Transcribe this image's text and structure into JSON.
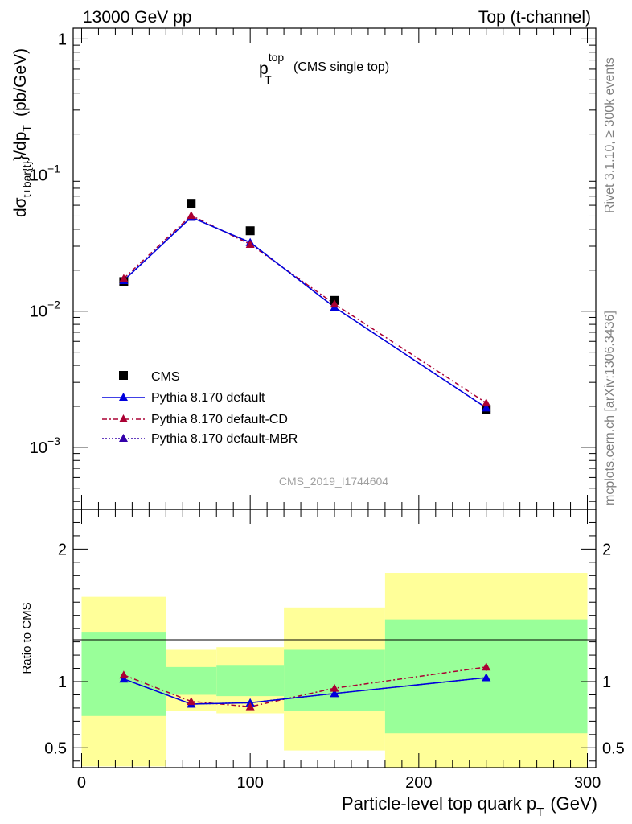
{
  "header": {
    "left": "13000 GeV pp",
    "right": "Top (t-channel)"
  },
  "plot_title": {
    "main": "p",
    "sup": "top",
    "sub": "T",
    "note": "(CMS single top)"
  },
  "analysis_id": "CMS_2019_I1744604",
  "side_labels": {
    "rivet": "Rivet 3.1.10, ≥ 300k events",
    "mcplots": "mcplots.cern.ch [arXiv:1306.3436]"
  },
  "y_label": {
    "d": "dσ",
    "sub1": "t+bar{t}",
    "rest": "}/dp",
    "sub2": "T",
    "unit": "(pb/GeV)"
  },
  "ratio_ylabel": "Ratio to CMS",
  "x_label": {
    "main": "Particle-level top quark p",
    "sub": "T",
    "unit": "(GeV)"
  },
  "legend": {
    "cms": "CMS",
    "default": "Pythia 8.170 default",
    "cd": "Pythia 8.170 default-CD",
    "mbr": "Pythia 8.170 default-MBR"
  },
  "colors": {
    "cms": "#000000",
    "default": "#0000dd",
    "cd": "#aa0033",
    "mbr": "#3300aa",
    "band_inner": "#99ff99",
    "band_outer": "#ffff99"
  },
  "chart_data": [
    {
      "type": "scatter",
      "panel": "main",
      "yscale": "log",
      "xlim": [
        -5,
        305
      ],
      "ylim": [
        0.00035,
        1.2
      ],
      "y_ticks": [
        {
          "value": 1,
          "label": "1"
        },
        {
          "value": 0.1,
          "base": "10",
          "exp": "−1"
        },
        {
          "value": 0.01,
          "base": "10",
          "exp": "−2"
        },
        {
          "value": 0.001,
          "base": "10",
          "exp": "−3"
        }
      ],
      "legend_position": "bottom-left",
      "series": [
        {
          "name": "CMS",
          "x": [
            25,
            65,
            100,
            150,
            240
          ],
          "y": [
            0.0165,
            0.062,
            0.039,
            0.012,
            0.0019
          ]
        },
        {
          "name": "Pythia 8.170 default",
          "x": [
            25,
            65,
            100,
            150,
            240
          ],
          "y": [
            0.0168,
            0.049,
            0.032,
            0.0107,
            0.00195
          ]
        },
        {
          "name": "Pythia 8.170 default-CD",
          "x": [
            25,
            65,
            100,
            150,
            240
          ],
          "y": [
            0.0174,
            0.0505,
            0.031,
            0.0113,
            0.00212
          ]
        },
        {
          "name": "Pythia 8.170 default-MBR",
          "x": [
            25,
            65,
            100,
            150,
            240
          ],
          "y": [
            0.0168,
            0.049,
            0.032,
            0.0107,
            0.00195
          ]
        }
      ]
    },
    {
      "type": "line",
      "panel": "ratio",
      "ylabel": "Ratio to CMS",
      "xlim": [
        -5,
        305
      ],
      "ylim": [
        0.35,
        2.3
      ],
      "y_ticks": [
        {
          "value": 0.5,
          "label": "0.5"
        },
        {
          "value": 1,
          "label": "1"
        },
        {
          "value": 2,
          "label": "2"
        }
      ],
      "x_ticks": [
        {
          "value": 0,
          "label": "0"
        },
        {
          "value": 100,
          "label": "100"
        },
        {
          "value": 200,
          "label": "200"
        },
        {
          "value": 300,
          "label": "300"
        }
      ],
      "bins": [
        {
          "x0": 0,
          "x1": 50,
          "inner": [
            0.74,
            1.37
          ],
          "outer": [
            0.36,
            1.64
          ]
        },
        {
          "x0": 50,
          "x1": 80,
          "inner": [
            0.9,
            1.11
          ],
          "outer": [
            0.78,
            1.24
          ]
        },
        {
          "x0": 80,
          "x1": 120,
          "inner": [
            0.89,
            1.12
          ],
          "outer": [
            0.76,
            1.26
          ]
        },
        {
          "x0": 120,
          "x1": 180,
          "inner": [
            0.78,
            1.24
          ],
          "outer": [
            0.48,
            1.56
          ]
        },
        {
          "x0": 180,
          "x1": 300,
          "inner": [
            0.61,
            1.47
          ],
          "outer": [
            0.35,
            1.82
          ]
        }
      ],
      "series": [
        {
          "name": "Pythia 8.170 default",
          "x": [
            25,
            65,
            100,
            150,
            240
          ],
          "y": [
            1.02,
            0.83,
            0.84,
            0.91,
            1.03
          ]
        },
        {
          "name": "Pythia 8.170 default-CD",
          "x": [
            25,
            65,
            100,
            150,
            240
          ],
          "y": [
            1.05,
            0.85,
            0.81,
            0.95,
            1.11
          ],
          "err": [
            0,
            0,
            0,
            0,
            0.03
          ]
        },
        {
          "name": "Pythia 8.170 default-MBR",
          "x": [
            25,
            65,
            100,
            150,
            240
          ],
          "y": [
            1.02,
            0.83,
            0.84,
            0.91,
            1.03
          ]
        }
      ]
    }
  ]
}
